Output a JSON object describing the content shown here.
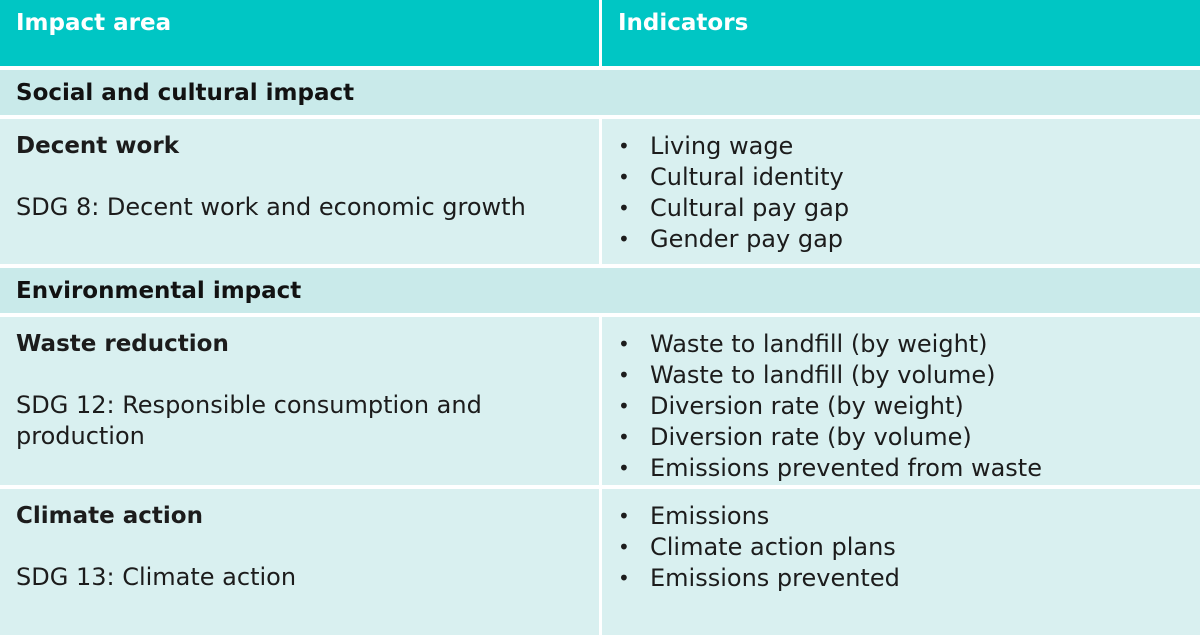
{
  "header": {
    "col1": "Impact area",
    "col2": "Indicators"
  },
  "sections": [
    {
      "title": "Social and cultural impact",
      "rows": [
        {
          "area": "Decent work",
          "sdg": "SDG 8: Decent work and economic growth",
          "indicators": [
            "Living wage",
            "Cultural identity",
            "Cultural pay gap",
            "Gender pay gap"
          ]
        }
      ]
    },
    {
      "title": "Environmental impact",
      "rows": [
        {
          "area": "Waste reduction",
          "sdg": "SDG 12: Responsible consumption and production",
          "indicators": [
            "Waste to landfill (by weight)",
            "Waste to landfill (by volume)",
            "Diversion rate (by weight)",
            "Diversion rate (by volume)",
            "Emissions prevented from waste"
          ]
        },
        {
          "area": "Climate action",
          "sdg": "SDG 13: Climate action",
          "indicators": [
            "Emissions",
            "Climate action plans",
            "Emissions prevented"
          ]
        }
      ]
    }
  ]
}
